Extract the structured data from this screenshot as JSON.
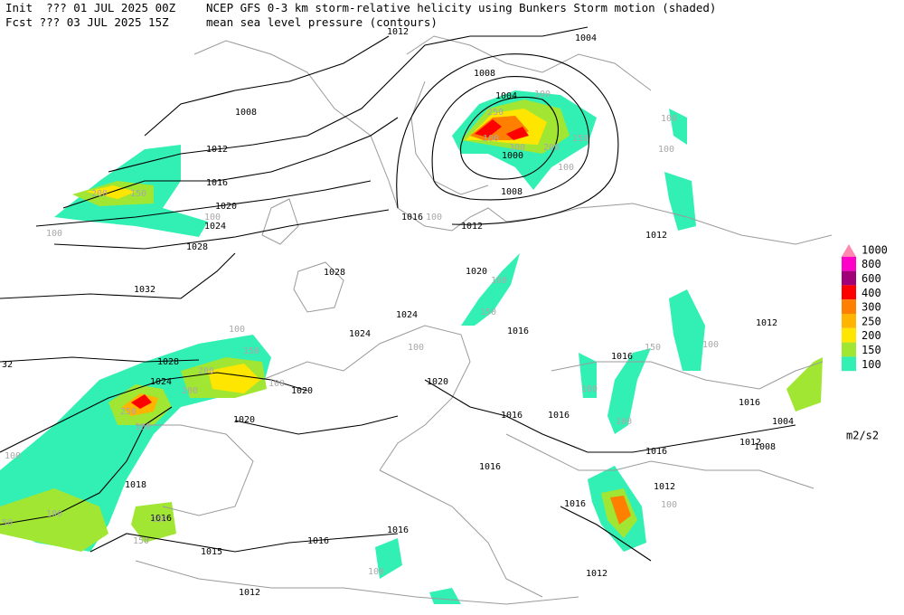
{
  "header": {
    "init": "Init  ??? 01 JUL 2025 00Z",
    "fcst": "Fcst ??? 03 JUL 2025 15Z",
    "title": "NCEP GFS 0-3 km storm-relative helicity using Bunkers Storm motion (shaded)",
    "subtitle": "mean sea level pressure (contours)"
  },
  "legend": {
    "levels": [
      {
        "label": 1000,
        "color": "#ff88b0"
      },
      {
        "label": 800,
        "color": "#ff00c8"
      },
      {
        "label": 600,
        "color": "#a00078"
      },
      {
        "label": 400,
        "color": "#ff0000"
      },
      {
        "label": 300,
        "color": "#ff8000"
      },
      {
        "label": 250,
        "color": "#ffb400"
      },
      {
        "label": 200,
        "color": "#ffe600"
      },
      {
        "label": 150,
        "color": "#a0e632"
      },
      {
        "label": 100,
        "color": "#32f0b4"
      }
    ],
    "unit": "m2/s2"
  },
  "isobar_labels": [
    "1012",
    "1004",
    "1008",
    "1004",
    "1008",
    "1012",
    "1016",
    "1020",
    "1024",
    "1028",
    "1032",
    "1000",
    "1008",
    "1016",
    "1012",
    "1012",
    "1020",
    "1028",
    "1024",
    "1024",
    "1016",
    "1012",
    "1028",
    "1024",
    "1020",
    "1020",
    "1016",
    "1016",
    "1020",
    "1016",
    "1016",
    "1004",
    "1012",
    "1008",
    "1016",
    "1016",
    "1018",
    "1012",
    "1016",
    "1016",
    "1016",
    "1016",
    "1015",
    "1012",
    "1012",
    "32"
  ],
  "helicity_labels": [
    "100",
    "200",
    "150",
    "100",
    "250",
    "100",
    "300",
    "100",
    "200",
    "150",
    "100",
    "100",
    "100",
    "100",
    "150",
    "100",
    "100",
    "150",
    "200",
    "200",
    "250",
    "100",
    "100",
    "100",
    "100",
    "150",
    "100",
    "100",
    "100",
    "100",
    "150",
    "100",
    "150",
    "100",
    "50"
  ]
}
